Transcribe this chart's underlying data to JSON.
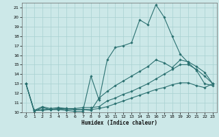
{
  "title": "",
  "xlabel": "Humidex (Indice chaleur)",
  "bg_color": "#cce8e8",
  "line_color": "#2a7070",
  "grid_color": "#a8d0d0",
  "xlim": [
    -0.5,
    23.5
  ],
  "ylim": [
    10,
    21.5
  ],
  "yticks": [
    10,
    11,
    12,
    13,
    14,
    15,
    16,
    17,
    18,
    19,
    20,
    21
  ],
  "xticks": [
    0,
    1,
    2,
    3,
    4,
    5,
    6,
    7,
    8,
    9,
    10,
    11,
    12,
    13,
    14,
    15,
    16,
    17,
    18,
    19,
    20,
    21,
    22,
    23
  ],
  "series": [
    [
      13,
      10.1,
      10.5,
      10.3,
      10.3,
      10.2,
      10.1,
      10.1,
      13.8,
      11.3,
      15.5,
      16.8,
      17.0,
      17.3,
      19.7,
      19.2,
      21.3,
      20.0,
      18.0,
      16.1,
      15.2,
      14.4,
      13.0,
      12.8
    ],
    [
      13,
      10.2,
      10.6,
      10.4,
      10.5,
      10.4,
      10.3,
      10.3,
      10.2,
      11.5,
      12.2,
      12.8,
      13.3,
      13.8,
      14.3,
      14.8,
      15.5,
      15.2,
      14.7,
      15.5,
      15.3,
      14.8,
      14.2,
      13.0
    ],
    [
      13,
      10.2,
      10.3,
      10.3,
      10.4,
      10.4,
      10.4,
      10.5,
      10.5,
      10.6,
      11.2,
      11.5,
      11.9,
      12.2,
      12.6,
      13.0,
      13.5,
      14.0,
      14.5,
      15.0,
      15.0,
      14.5,
      13.8,
      13.0
    ],
    [
      13,
      10.2,
      10.2,
      10.3,
      10.3,
      10.3,
      10.3,
      10.3,
      10.3,
      10.4,
      10.6,
      10.9,
      11.2,
      11.5,
      11.8,
      12.1,
      12.4,
      12.6,
      12.9,
      13.1,
      13.1,
      12.8,
      12.6,
      13.0
    ]
  ]
}
